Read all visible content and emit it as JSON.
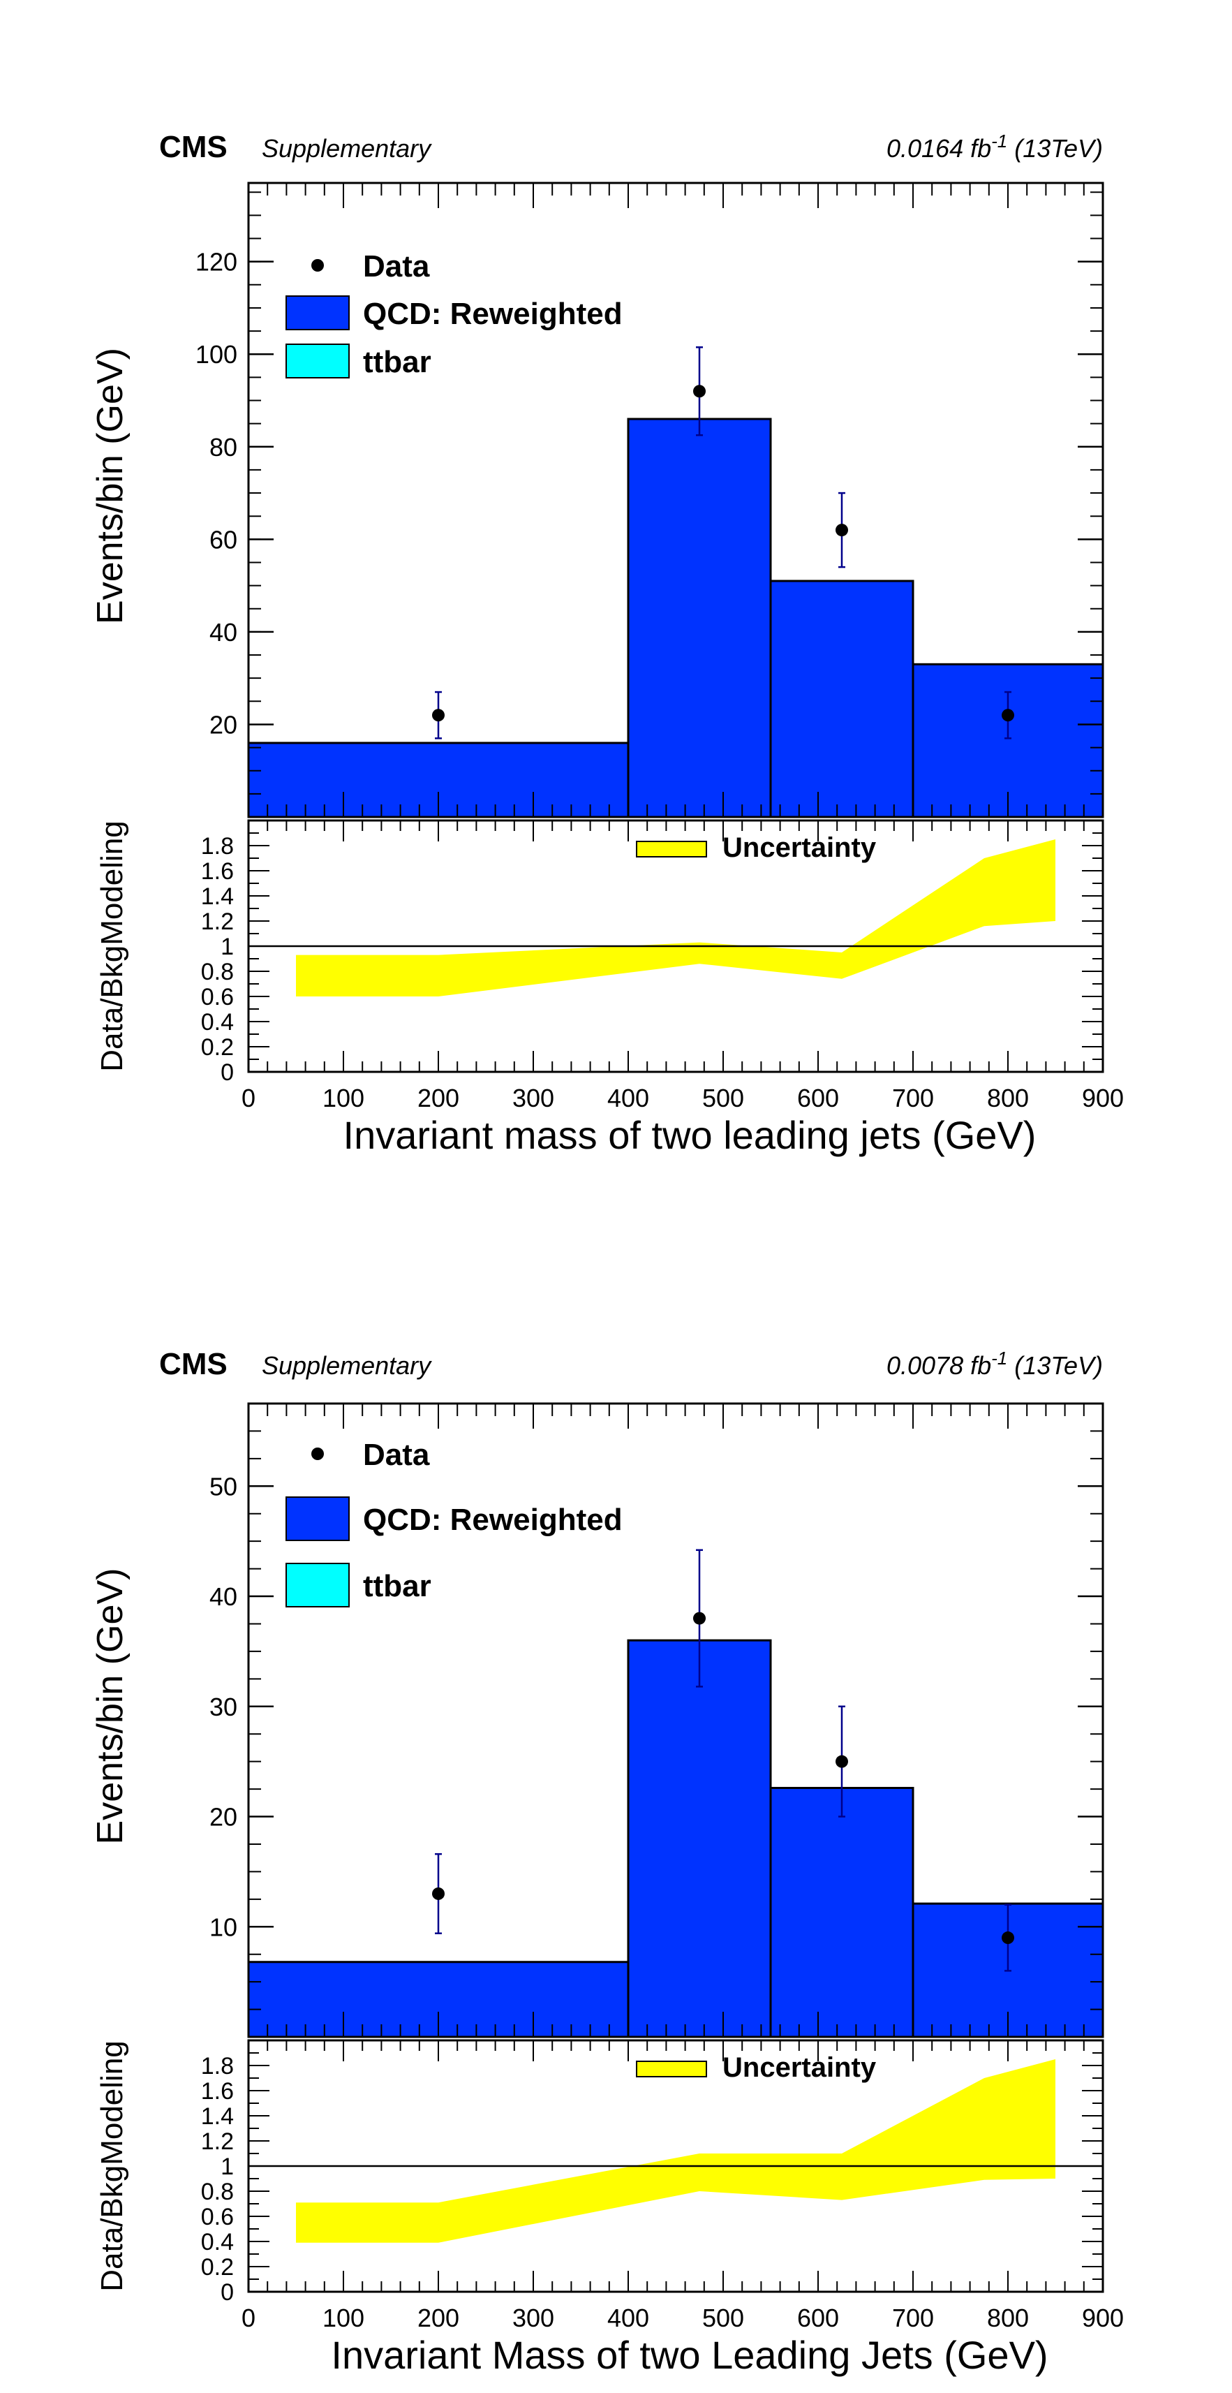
{
  "colors": {
    "qcd": "#0033ff",
    "ttbar": "#00ffff",
    "uncertainty": "#ffff00",
    "data_error": "#00008b",
    "axis": "#000000"
  },
  "chart_data": [
    {
      "type": "bar",
      "experiment": "CMS",
      "tag": "Supplementary",
      "lumi_value": "0.0164 fb",
      "lumi_exp": "-1",
      "lumi_energy": " (13TeV)",
      "ylabel": "Events/bin (GeV)",
      "ratio_ylabel": "Data/BkgModeling",
      "xlabel": "Invariant mass of two leading jets (GeV)",
      "xlim": [
        0,
        900
      ],
      "ylim": [
        0,
        137
      ],
      "ratio_ylim": [
        0,
        2
      ],
      "x_ticks": [
        "0",
        "100",
        "200",
        "300",
        "400",
        "500",
        "600",
        "700",
        "800",
        "900"
      ],
      "y_ticks": [
        "20",
        "40",
        "60",
        "80",
        "100",
        "120"
      ],
      "ratio_ticks": [
        "0",
        "0.2",
        "0.4",
        "0.6",
        "0.8",
        "1",
        "1.2",
        "1.4",
        "1.6",
        "1.8"
      ],
      "legend": {
        "data": "Data",
        "qcd": "QCD: Reweighted",
        "ttbar": "ttbar",
        "uncertainty": "Uncertainty",
        "placement": "top-left"
      },
      "bin_edges": [
        0,
        400,
        550,
        700,
        900
      ],
      "series": [
        {
          "name": "QCD: Reweighted",
          "values": [
            16,
            86,
            51,
            33
          ]
        },
        {
          "name": "ttbar",
          "values": [
            0,
            0,
            0,
            0
          ]
        }
      ],
      "data_points": [
        {
          "x": 200,
          "y": 22,
          "err": 5
        },
        {
          "x": 475,
          "y": 92,
          "err": 9.5
        },
        {
          "x": 625,
          "y": 62,
          "err": 8
        },
        {
          "x": 800,
          "y": 22,
          "err": 5
        }
      ],
      "uncertainty_band": {
        "x": [
          50,
          200,
          475,
          625,
          775,
          850
        ],
        "low": [
          0.6,
          0.6,
          0.86,
          0.74,
          1.16,
          1.2
        ],
        "high": [
          0.93,
          0.93,
          1.03,
          0.95,
          1.7,
          1.85
        ]
      },
      "ratio_reference": 1
    },
    {
      "type": "bar",
      "experiment": "CMS",
      "tag": "Supplementary",
      "lumi_value": "0.0078 fb",
      "lumi_exp": "-1",
      "lumi_energy": " (13TeV)",
      "ylabel": "Events/bin (GeV)",
      "ratio_ylabel": "Data/BkgModeling",
      "xlabel": "Invariant Mass of two Leading Jets (GeV)",
      "xlim": [
        0,
        900
      ],
      "ylim": [
        0,
        57.5
      ],
      "ratio_ylim": [
        0,
        2
      ],
      "x_ticks": [
        "0",
        "100",
        "200",
        "300",
        "400",
        "500",
        "600",
        "700",
        "800",
        "900"
      ],
      "y_ticks": [
        "10",
        "20",
        "30",
        "40",
        "50"
      ],
      "ratio_ticks": [
        "0",
        "0.2",
        "0.4",
        "0.6",
        "0.8",
        "1",
        "1.2",
        "1.4",
        "1.6",
        "1.8"
      ],
      "legend": {
        "data": "Data",
        "qcd": "QCD: Reweighted",
        "ttbar": "ttbar",
        "uncertainty": "Uncertainty",
        "placement": "top-left"
      },
      "bin_edges": [
        0,
        400,
        550,
        700,
        900
      ],
      "series": [
        {
          "name": "QCD: Reweighted",
          "values": [
            6.8,
            36,
            22.6,
            12.1
          ]
        },
        {
          "name": "ttbar",
          "values": [
            0,
            0,
            0,
            0
          ]
        }
      ],
      "data_points": [
        {
          "x": 200,
          "y": 13,
          "err": 3.6
        },
        {
          "x": 475,
          "y": 38,
          "err": 6.2
        },
        {
          "x": 625,
          "y": 25,
          "err": 5
        },
        {
          "x": 800,
          "y": 9,
          "err": 3
        }
      ],
      "uncertainty_band": {
        "x": [
          50,
          200,
          475,
          625,
          775,
          850
        ],
        "low": [
          0.39,
          0.39,
          0.8,
          0.73,
          0.89,
          0.9
        ],
        "high": [
          0.71,
          0.71,
          1.1,
          1.1,
          1.7,
          1.85
        ]
      },
      "ratio_reference": 1
    }
  ]
}
